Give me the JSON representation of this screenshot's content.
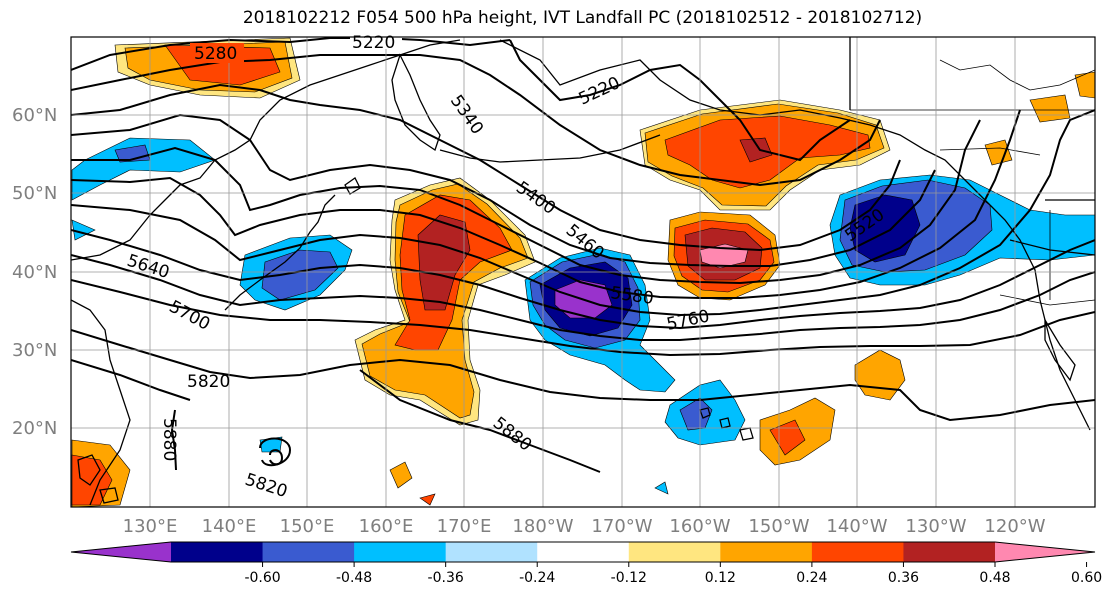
{
  "title": "2018102212 F054 500 hPa height, IVT Landfall PC (2018102512 - 2018102712)",
  "lat_labels": [
    "60°N",
    "50°N",
    "40°N",
    "30°N",
    "20°N"
  ],
  "lon_labels": [
    "130°E",
    "140°E",
    "150°E",
    "160°E",
    "170°E",
    "180°W",
    "170°W",
    "160°W",
    "150°W",
    "140°W",
    "130°W",
    "120°W"
  ],
  "contour_labels": [
    "5280",
    "5220",
    "5340",
    "5220",
    "5400",
    "5460",
    "5520",
    "5580",
    "5640",
    "5700",
    "5760",
    "5820",
    "5880",
    "5880",
    "5820"
  ],
  "colorbar": {
    "colors": [
      "#9932cc",
      "#00008b",
      "#3a5bd0",
      "#00bfff",
      "#b0e2ff",
      "#ffffff",
      "#ffe680",
      "#ffa500",
      "#ff4500",
      "#b22222",
      "#ff88b0"
    ],
    "ticks": [
      "-0.60",
      "-0.48",
      "-0.36",
      "-0.24",
      "-0.12",
      "0.12",
      "0.24",
      "0.36",
      "0.48",
      "0.60"
    ]
  }
}
